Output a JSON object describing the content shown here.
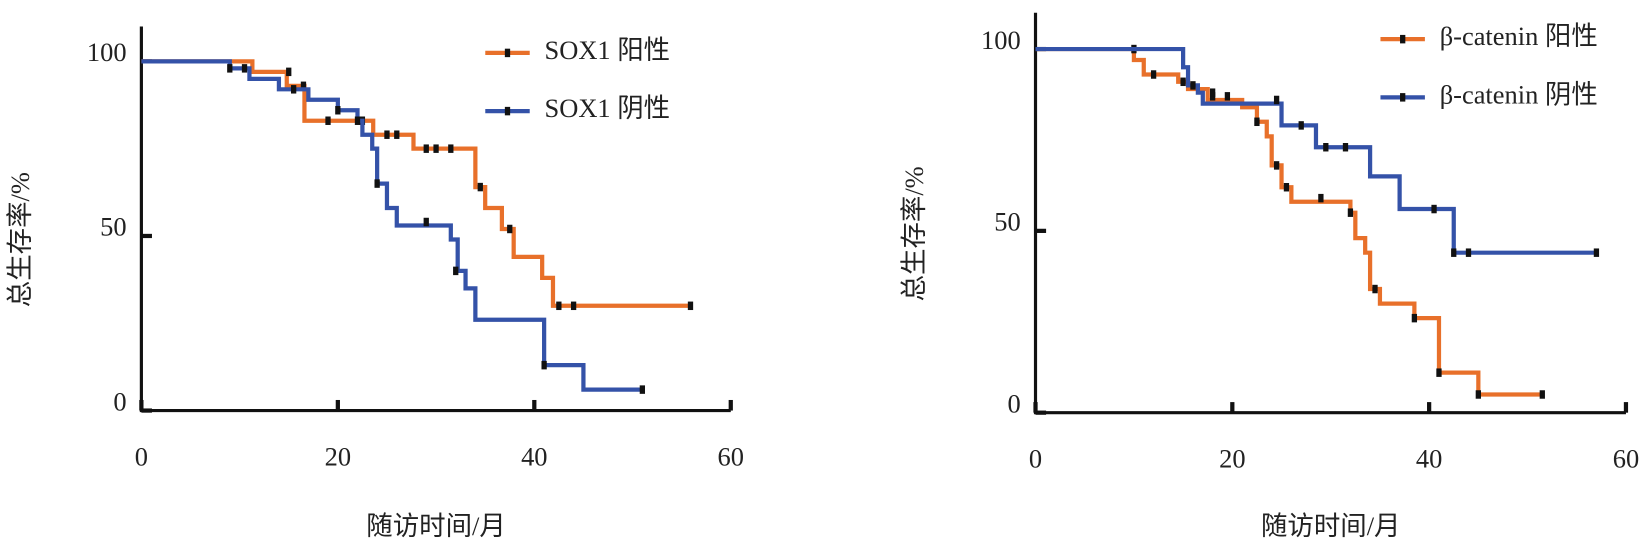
{
  "chart_data": [
    {
      "type": "step",
      "xlabel": "随访时间/月",
      "ylabel": "总生存率/%",
      "xlim": [
        0,
        60
      ],
      "ylim": [
        0,
        110
      ],
      "xticks": [
        0,
        20,
        40,
        60
      ],
      "yticks": [
        0,
        50,
        100
      ],
      "legend": "upper right",
      "series": [
        {
          "name": "SOX1 阳性",
          "color": "#e8702a",
          "x": [
            0,
            11.3,
            14.8,
            16.6,
            23.6,
            27.7,
            34,
            35,
            36.7,
            37.9,
            40.8,
            41.9,
            55.9
          ],
          "values": [
            100,
            97,
            93,
            83,
            79,
            75,
            64,
            58,
            52,
            44,
            38,
            30,
            30
          ],
          "censor_x": [
            15,
            16.5,
            19,
            22.5,
            25,
            26,
            29,
            30,
            31.5,
            34.5,
            37.5,
            42.5,
            44,
            55.9
          ],
          "censor_values": [
            97,
            93,
            83,
            83,
            79,
            79,
            75,
            75,
            75,
            64,
            52,
            30,
            30,
            30
          ]
        },
        {
          "name": "SOX1 阴性",
          "color": "#3452a8",
          "x": [
            0,
            9,
            11,
            14,
            17,
            20,
            22,
            22.5,
            23.5,
            24,
            25,
            26,
            31.5,
            32.2,
            33,
            34,
            41,
            45,
            51
          ],
          "values": [
            100,
            98,
            95,
            92,
            89,
            86,
            83,
            79,
            75,
            65,
            58,
            53,
            49,
            40,
            35,
            26,
            13,
            6,
            6
          ],
          "censor_x": [
            9,
            10.5,
            15.5,
            20,
            22,
            24,
            29,
            32,
            41,
            51
          ],
          "censor_values": [
            98,
            98,
            92,
            86,
            83,
            65,
            54,
            40,
            13,
            6
          ]
        }
      ]
    },
    {
      "type": "step",
      "xlabel": "随访时间/月",
      "ylabel": "总生存率/%",
      "xlim": [
        0,
        60
      ],
      "ylim": [
        0,
        110
      ],
      "xticks": [
        0,
        20,
        40,
        60
      ],
      "yticks": [
        0,
        50,
        100
      ],
      "legend": "upper right",
      "series": [
        {
          "name": "β-catenin 阳性",
          "color": "#e8702a",
          "x": [
            0,
            10,
            11,
            14.5,
            15.5,
            17.5,
            21,
            22.5,
            23.5,
            24,
            25,
            26,
            32,
            32.5,
            33.5,
            34,
            35,
            38.5,
            41,
            45,
            51.5
          ],
          "values": [
            100,
            97,
            93,
            91,
            89,
            86,
            84,
            80,
            76,
            68,
            62,
            58,
            55,
            48,
            44,
            34,
            30,
            26,
            11,
            5,
            5
          ],
          "censor_x": [
            10,
            12,
            15,
            18,
            19.5,
            22.5,
            24.5,
            25.5,
            29,
            32,
            34.5,
            38.5,
            41,
            45,
            51.5
          ],
          "censor_values": [
            100,
            93,
            91,
            87,
            87,
            80,
            68,
            62,
            59,
            55,
            34,
            26,
            11,
            5,
            5
          ]
        },
        {
          "name": "β-catenin 阴性",
          "color": "#3452a8",
          "x": [
            0,
            15,
            15.5,
            16.5,
            17,
            25,
            28.5,
            34,
            37,
            42.5,
            57
          ],
          "values": [
            100,
            95,
            90,
            88,
            85,
            79,
            73,
            65,
            56,
            44,
            44
          ],
          "censor_x": [
            16,
            18,
            24.5,
            27,
            29.5,
            31.5,
            40.5,
            42.5,
            44,
            57
          ],
          "censor_values": [
            90,
            88,
            86,
            79,
            73,
            73,
            56,
            44,
            44,
            44
          ]
        }
      ]
    }
  ]
}
